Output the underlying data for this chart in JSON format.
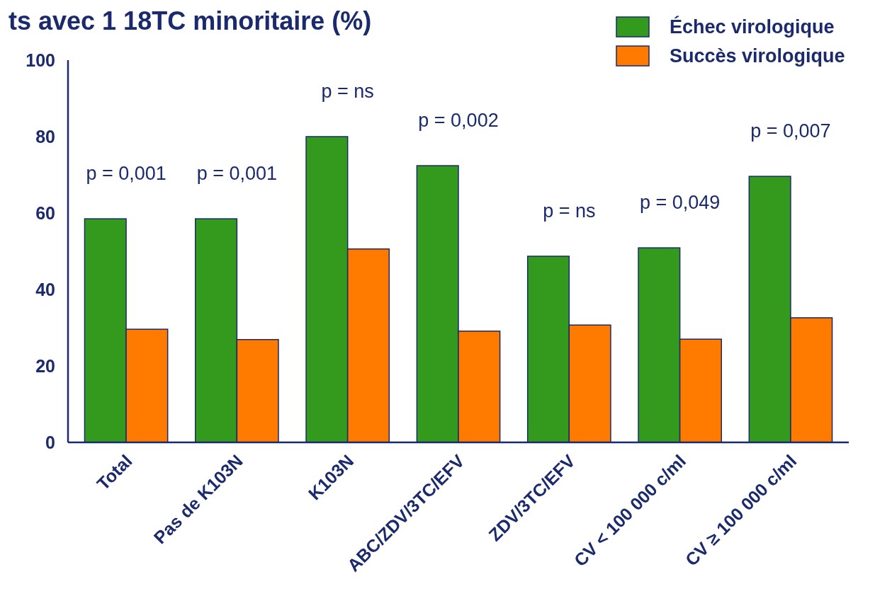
{
  "chart_data": {
    "type": "bar",
    "title": "ts avec 1 18TC minoritaire (%)",
    "categories": [
      "Total",
      "Pas de K103N",
      "K103N",
      "ABC/ZDV/3TC/EFV",
      "ZDV/3TC/EFV",
      "CV < 100 000 c/ml",
      "CV ≥ 100 000 c/ml"
    ],
    "series": [
      {
        "name": "Échec virologique",
        "color": "#339a1e",
        "values": [
          58.5,
          58.5,
          80,
          72.4,
          48.7,
          50.9,
          69.6
        ]
      },
      {
        "name": "Succès virologique",
        "color": "#ff7b00",
        "values": [
          29.6,
          26.9,
          50.6,
          29.1,
          30.7,
          27,
          32.6
        ]
      }
    ],
    "ylim": [
      0,
      100
    ],
    "yticks": [
      0,
      20,
      40,
      60,
      80,
      100
    ],
    "grid": false,
    "legend": "top right",
    "annotations": [
      {
        "text": "p = 0,001",
        "x": "Total",
        "y": 58.5
      },
      {
        "text": "p = 0,001",
        "x": "Pas de K103N",
        "y": 58.5
      },
      {
        "text": "p = ns",
        "x": "K103N",
        "y": 80
      },
      {
        "text": "p = 0,002",
        "x": "ABC/ZDV/3TC/EFV",
        "y": 72.4
      },
      {
        "text": "p = ns",
        "x": "ZDV/3TC/EFV",
        "y": 48.7
      },
      {
        "text": "p = 0,049",
        "x": "CV < 100 000 c/ml",
        "y": 50.9
      },
      {
        "text": "p = 0,007",
        "x": "CV ≥ 100 000 c/ml",
        "y": 69.6
      }
    ]
  }
}
